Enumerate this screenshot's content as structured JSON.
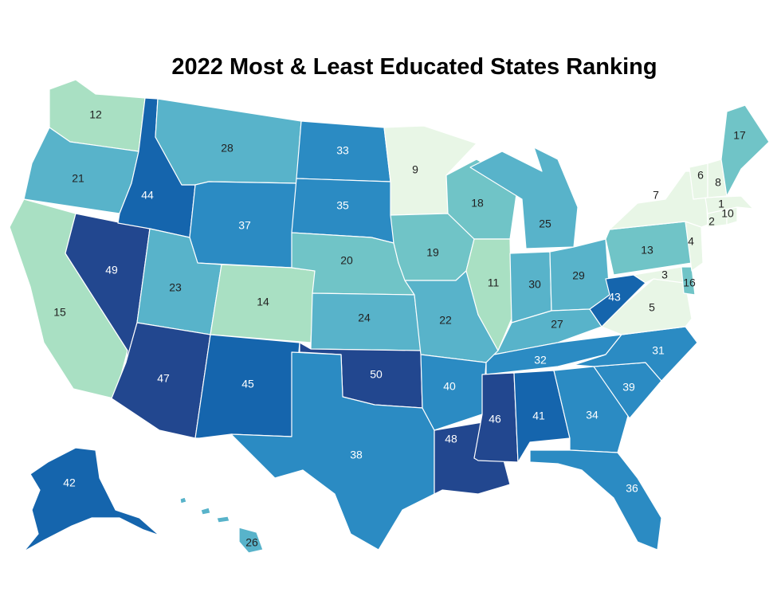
{
  "title": "2022 Most & Least Educated States Ranking",
  "colors": {
    "r1_10": "#e8f6e6",
    "r11_20": "#a9e0c3",
    "r11_20_b": "#70c4c7",
    "r21_30": "#58b3ca",
    "r31_40": "#2b8bc3",
    "r41_45": "#1565ad",
    "r46_50": "#22478f"
  },
  "states": {
    "WA": "12",
    "OR": "21",
    "CA": "15",
    "NV": "49",
    "ID": "44",
    "MT": "28",
    "WY": "37",
    "UT": "23",
    "AZ": "47",
    "CO": "14",
    "NM": "45",
    "ND": "33",
    "SD": "35",
    "NE": "20",
    "KS": "24",
    "OK": "50",
    "TX": "38",
    "MN": "9",
    "IA": "19",
    "MO": "22",
    "AR": "40",
    "LA": "48",
    "WI": "18",
    "IL": "11",
    "MI": "25",
    "IN": "30",
    "OH": "29",
    "KY": "27",
    "TN": "32",
    "MS": "46",
    "AL": "41",
    "GA": "34",
    "FL": "36",
    "SC": "39",
    "NC": "31",
    "VA": "5",
    "WV": "43",
    "MD": "3",
    "DE": "16",
    "PA": "13",
    "NJ": "4",
    "NY": "7",
    "CT": "2",
    "RI": "10",
    "MA": "1",
    "VT": "6",
    "NH": "8",
    "ME": "17",
    "AK": "42",
    "HI": "26"
  }
}
